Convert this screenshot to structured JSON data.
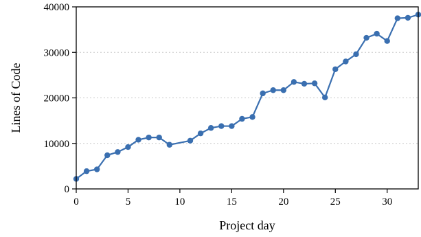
{
  "chart_data": {
    "type": "line",
    "xlabel": "Project day",
    "ylabel": "Lines of Code",
    "xlim": [
      0,
      33
    ],
    "ylim": [
      0,
      40000
    ],
    "x_ticks": [
      0,
      5,
      10,
      15,
      20,
      25,
      30
    ],
    "y_ticks": [
      0,
      10000,
      20000,
      30000,
      40000
    ],
    "grid": "horizontal dotted",
    "series": [
      {
        "color": "#3a6fb0",
        "points": [
          {
            "x": 0,
            "y": 2200
          },
          {
            "x": 1,
            "y": 3900
          },
          {
            "x": 2,
            "y": 4300
          },
          {
            "x": 3,
            "y": 7400
          },
          {
            "x": 4,
            "y": 8100
          },
          {
            "x": 5,
            "y": 9200
          },
          {
            "x": 6,
            "y": 10800
          },
          {
            "x": 7,
            "y": 11300
          },
          {
            "x": 8,
            "y": 11300
          },
          {
            "x": 9,
            "y": 9700
          },
          {
            "x": 11,
            "y": 10600
          },
          {
            "x": 12,
            "y": 12200
          },
          {
            "x": 13,
            "y": 13400
          },
          {
            "x": 14,
            "y": 13800
          },
          {
            "x": 15,
            "y": 13800
          },
          {
            "x": 16,
            "y": 15400
          },
          {
            "x": 17,
            "y": 15800
          },
          {
            "x": 18,
            "y": 21000
          },
          {
            "x": 19,
            "y": 21700
          },
          {
            "x": 20,
            "y": 21700
          },
          {
            "x": 21,
            "y": 23500
          },
          {
            "x": 22,
            "y": 23100
          },
          {
            "x": 23,
            "y": 23200
          },
          {
            "x": 24,
            "y": 20100
          },
          {
            "x": 25,
            "y": 26300
          },
          {
            "x": 26,
            "y": 28000
          },
          {
            "x": 27,
            "y": 29600
          },
          {
            "x": 28,
            "y": 33200
          },
          {
            "x": 29,
            "y": 34100
          },
          {
            "x": 30,
            "y": 32500
          },
          {
            "x": 31,
            "y": 37500
          },
          {
            "x": 32,
            "y": 37600
          },
          {
            "x": 33,
            "y": 38300
          }
        ]
      }
    ]
  }
}
